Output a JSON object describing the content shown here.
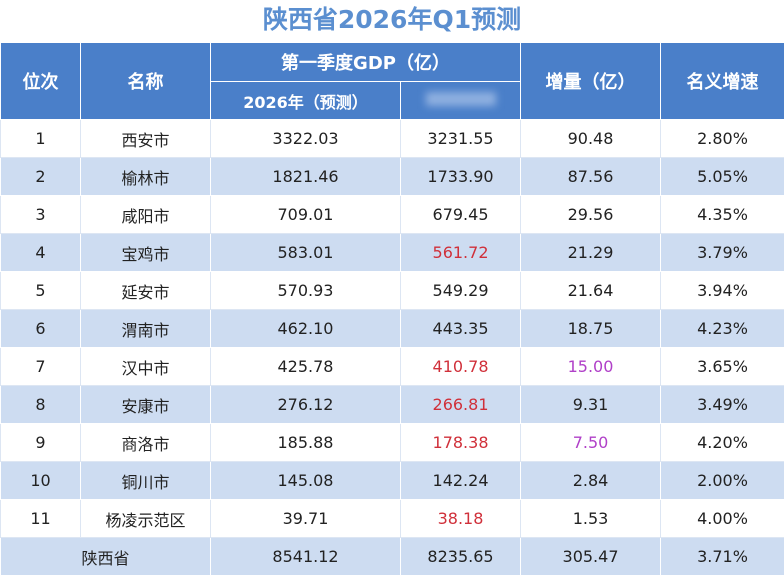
{
  "title": "陕西省2026年Q1预测",
  "table": {
    "header": {
      "rank": "位次",
      "name": "名称",
      "gdp": "第一季度GDP（亿）",
      "gdp_2026": "2026年（预测）",
      "increase": "增量（亿）",
      "growth": "名义增速"
    },
    "rows": [
      [
        "1",
        "西安市",
        "3322.03",
        "3231.55",
        "90.48",
        "2.80%"
      ],
      [
        "2",
        "榆林市",
        "1821.46",
        "1733.90",
        "87.56",
        "5.05%"
      ],
      [
        "3",
        "咸阳市",
        "709.01",
        "679.45",
        "29.56",
        "4.35%"
      ],
      [
        "4",
        "宝鸡市",
        "583.01",
        {
          "text": "561.72",
          "color": "#d0303a"
        },
        "21.29",
        "3.79%"
      ],
      [
        "5",
        "延安市",
        "570.93",
        "549.29",
        "21.64",
        "3.94%"
      ],
      [
        "6",
        "渭南市",
        "462.10",
        "443.35",
        "18.75",
        "4.23%"
      ],
      [
        "7",
        "汉中市",
        "425.78",
        {
          "text": "410.78",
          "color": "#d0303a"
        },
        {
          "text": "15.00",
          "color": "#b040c8"
        },
        "3.65%"
      ],
      [
        "8",
        "安康市",
        "276.12",
        {
          "text": "266.81",
          "color": "#d0303a"
        },
        "9.31",
        "3.49%"
      ],
      [
        "9",
        "商洛市",
        "185.88",
        {
          "text": "178.38",
          "color": "#d0303a"
        },
        {
          "text": "7.50",
          "color": "#b040c8"
        },
        "4.20%"
      ],
      [
        "10",
        "铜川市",
        "145.08",
        "142.24",
        "2.84",
        "2.00%"
      ],
      [
        "11",
        "杨凌示范区",
        "39.71",
        {
          "text": "38.18",
          "color": "#d0303a"
        },
        "1.53",
        "4.00%"
      ]
    ],
    "total": [
      "陕西省",
      "8541.12",
      "8235.65",
      "305.47",
      "3.71%"
    ]
  }
}
